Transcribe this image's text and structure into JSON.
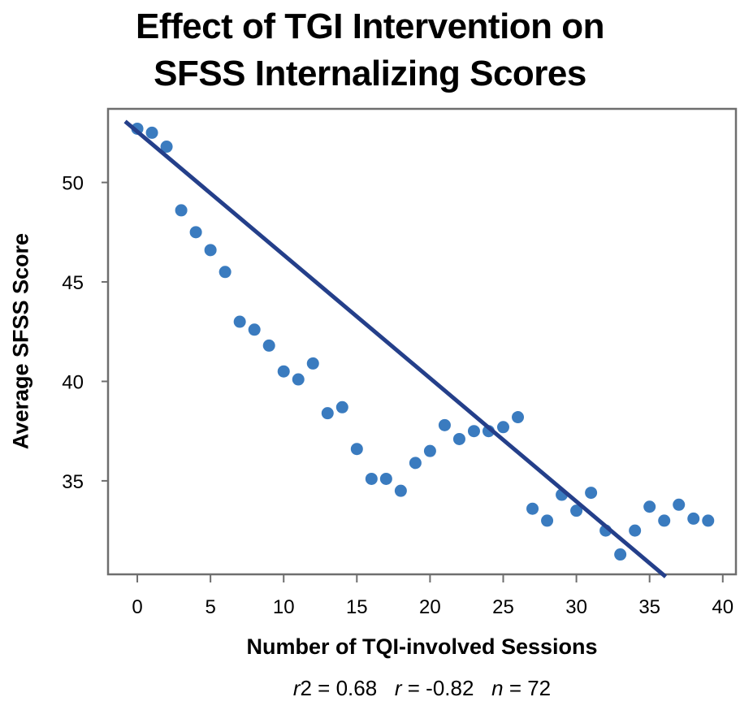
{
  "chart_data": {
    "type": "scatter",
    "title": [
      "Effect of TGI Intervention on",
      "SFSS Internalizing Scores"
    ],
    "xlabel": "Number of TQI-involved Sessions",
    "ylabel": "Average SFSS Score",
    "xlim": [
      -2,
      40.9
    ],
    "ylim": [
      30.3,
      53.7
    ],
    "xticks": [
      0,
      5,
      10,
      15,
      20,
      25,
      30,
      35,
      40
    ],
    "yticks": [
      35,
      40,
      45,
      50
    ],
    "grid": false,
    "legend": "none",
    "series": [
      {
        "name": "Average SFSS Score",
        "color": "#3a7bbf",
        "x": [
          0,
          1,
          2,
          3,
          4,
          5,
          6,
          7,
          8,
          9,
          10,
          11,
          12,
          13,
          14,
          15,
          16,
          17,
          18,
          19,
          20,
          21,
          22,
          23,
          24,
          25,
          26,
          27,
          28,
          29,
          30,
          31,
          32,
          33,
          34,
          35,
          36,
          37,
          38,
          39
        ],
        "y": [
          52.7,
          52.5,
          51.8,
          48.6,
          47.5,
          46.6,
          45.5,
          43.0,
          42.6,
          41.8,
          40.5,
          40.1,
          40.9,
          38.4,
          38.7,
          36.6,
          35.1,
          35.1,
          34.5,
          35.9,
          36.5,
          37.8,
          37.1,
          37.5,
          37.5,
          37.7,
          38.2,
          33.6,
          33.0,
          34.3,
          33.5,
          34.4,
          32.5,
          31.3,
          32.5,
          33.7,
          33.0,
          33.8,
          33.1,
          33.0
        ]
      }
    ],
    "trendline": {
      "name": "Linear fit",
      "color": "#243f8a",
      "x": [
        -0.83,
        36.1
      ],
      "y": [
        53.07,
        30.18
      ]
    },
    "annotation": {
      "r2_label": "r",
      "r2_suffix": "2 = 0.68",
      "r_label": "r",
      "r_value": " = -0.82",
      "n_label": "n",
      "n_value": " = 72"
    }
  }
}
